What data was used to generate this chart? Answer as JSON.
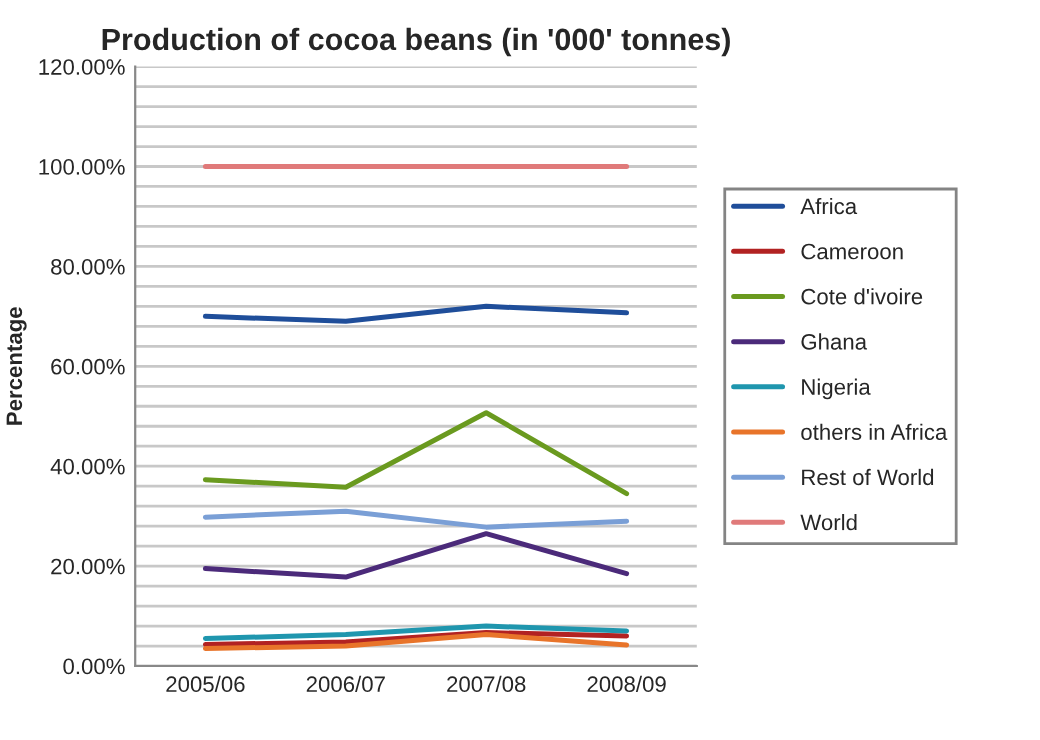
{
  "chart_data": {
    "type": "line",
    "title": "Production of cocoa beans (in '000' tonnes)",
    "ylabel": "Percentage",
    "categories": [
      "2005/06",
      "2006/07",
      "2007/08",
      "2008/09"
    ],
    "series": [
      {
        "name": "Africa",
        "color": "#1f4e9a",
        "values": [
          70,
          69,
          72,
          70.7
        ]
      },
      {
        "name": "Cameroon",
        "color": "#b22222",
        "values": [
          4.3,
          4.8,
          6.7,
          6
        ]
      },
      {
        "name": "Cote d'ivoire",
        "color": "#6a9a1f",
        "values": [
          37.3,
          35.8,
          50.7,
          34.5
        ]
      },
      {
        "name": "Ghana",
        "color": "#4b2a7a",
        "values": [
          19.5,
          17.8,
          26.5,
          18.5
        ]
      },
      {
        "name": "Nigeria",
        "color": "#1f96ae",
        "values": [
          5.5,
          6.3,
          8,
          7
        ]
      },
      {
        "name": "others in Africa",
        "color": "#e8742a",
        "values": [
          3.5,
          4,
          6.3,
          4.2
        ]
      },
      {
        "name": "Rest of World",
        "color": "#7a9fd6",
        "values": [
          29.8,
          31,
          27.8,
          29
        ]
      },
      {
        "name": "World",
        "color": "#e07a7a",
        "values": [
          100,
          100,
          100,
          100
        ]
      }
    ],
    "ylim": [
      0,
      120
    ],
    "yticks": [
      {
        "value": 0,
        "label": "0.00%"
      },
      {
        "value": 4,
        "label": null
      },
      {
        "value": 8,
        "label": null
      },
      {
        "value": 12,
        "label": null
      },
      {
        "value": 16,
        "label": null
      },
      {
        "value": 20,
        "label": "20.00%"
      },
      {
        "value": 24,
        "label": null
      },
      {
        "value": 28,
        "label": null
      },
      {
        "value": 32,
        "label": null
      },
      {
        "value": 36,
        "label": null
      },
      {
        "value": 40,
        "label": "40.00%"
      },
      {
        "value": 44,
        "label": null
      },
      {
        "value": 48,
        "label": null
      },
      {
        "value": 52,
        "label": null
      },
      {
        "value": 56,
        "label": null
      },
      {
        "value": 60,
        "label": "60.00%"
      },
      {
        "value": 64,
        "label": null
      },
      {
        "value": 68,
        "label": null
      },
      {
        "value": 72,
        "label": null
      },
      {
        "value": 76,
        "label": null
      },
      {
        "value": 80,
        "label": "80.00%"
      },
      {
        "value": 84,
        "label": null
      },
      {
        "value": 88,
        "label": null
      },
      {
        "value": 92,
        "label": null
      },
      {
        "value": 96,
        "label": null
      },
      {
        "value": 100,
        "label": "100.00%"
      },
      {
        "value": 104,
        "label": null
      },
      {
        "value": 108,
        "label": null
      },
      {
        "value": 112,
        "label": null
      },
      {
        "value": 116,
        "label": null
      },
      {
        "value": 120,
        "label": "120.00%"
      }
    ],
    "grid": "y",
    "legend": "right",
    "marker": "none",
    "line_style": "solid"
  }
}
